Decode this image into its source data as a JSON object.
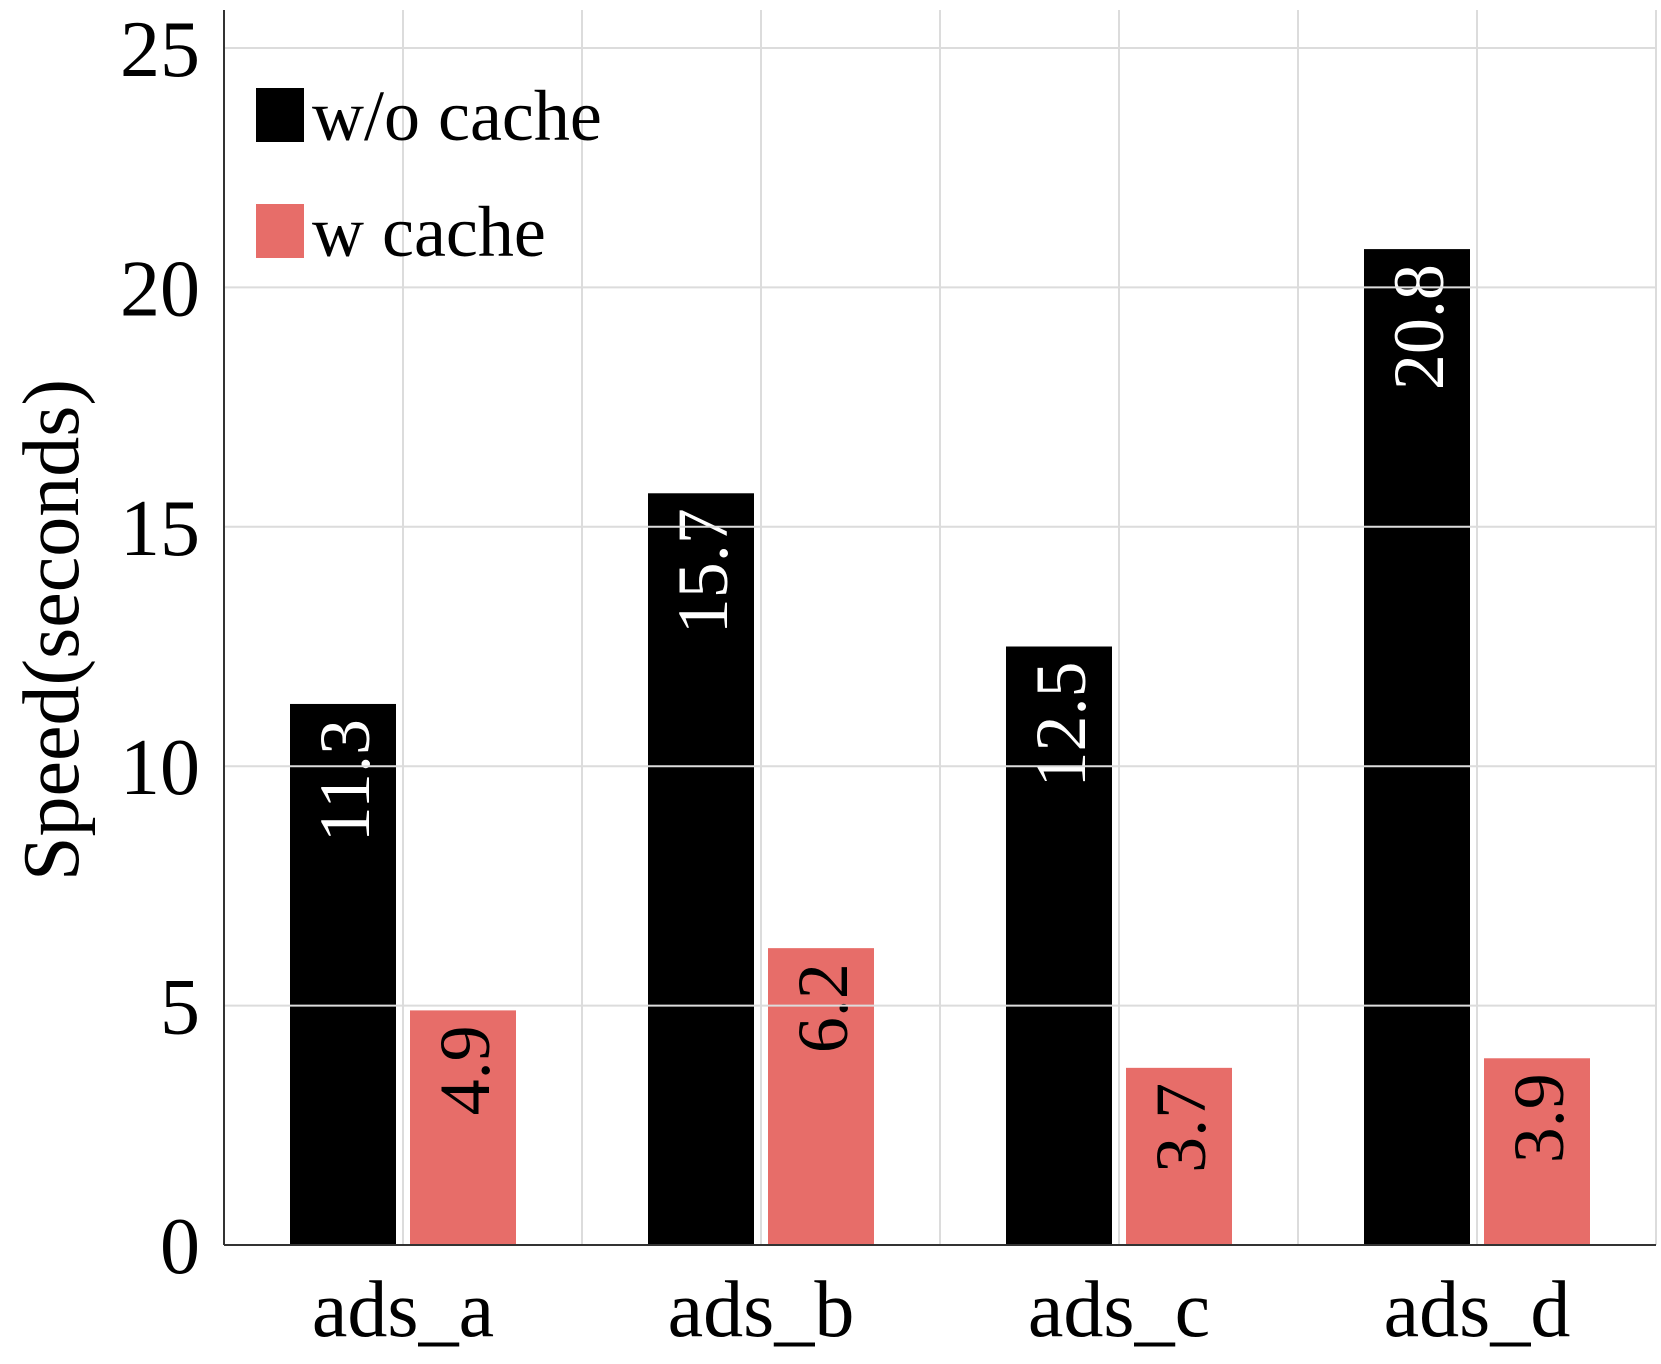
{
  "chart_data": {
    "type": "bar",
    "title": "",
    "xlabel": "",
    "ylabel": "Speed(seconds)",
    "ylim": [
      0,
      25
    ],
    "yticks": [
      0,
      5,
      10,
      15,
      20,
      25
    ],
    "grid": true,
    "legend_position": "top-left",
    "categories": [
      "ads_a",
      "ads_b",
      "ads_c",
      "ads_d"
    ],
    "series": [
      {
        "name": "w/o cache",
        "color": "#000000",
        "label_color": "#ffffff",
        "values": [
          11.3,
          15.7,
          12.5,
          20.8
        ]
      },
      {
        "name": "w cache",
        "color": "#e76d69",
        "label_color": "#000000",
        "values": [
          4.9,
          6.2,
          3.7,
          3.9
        ]
      }
    ]
  }
}
